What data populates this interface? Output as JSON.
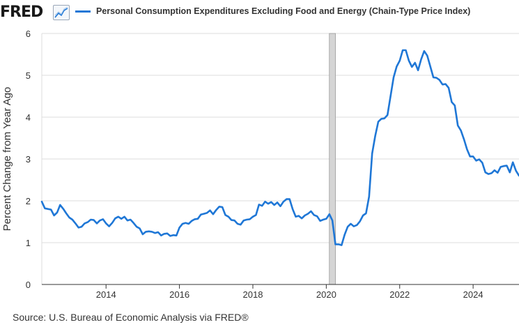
{
  "header": {
    "logo_text": "FRED",
    "logo_icon": "line-chart-icon",
    "legend_label": "Personal Consumption Expenditures Excluding Food and Energy (Chain-Type Price Index)",
    "series_color": "#1f77d6"
  },
  "source": "Source: U.S. Bureau of Economic Analysis via FRED®",
  "chart_data": {
    "type": "line",
    "title": "",
    "ylabel": "Percent Change from Year Ago",
    "xlabel": "",
    "xlim": [
      "2012-04-01",
      "2025-04-01"
    ],
    "ylim": [
      0,
      6
    ],
    "x_ticks": [
      "2014",
      "2016",
      "2018",
      "2020",
      "2022",
      "2024"
    ],
    "y_ticks": [
      "0",
      "1",
      "2",
      "3",
      "4",
      "5",
      "6"
    ],
    "grid": "horizontal",
    "recession": {
      "start": "2020-02-01",
      "end": "2020-04-01"
    },
    "series": [
      {
        "name": "Personal Consumption Expenditures Excluding Food and Energy (Chain-Type Price Index)",
        "x": [
          "2012-04",
          "2012-05",
          "2012-07",
          "2012-08",
          "2012-09",
          "2012-10",
          "2012-11",
          "2012-12",
          "2013-01",
          "2013-02",
          "2013-03",
          "2013-04",
          "2013-05",
          "2013-06",
          "2013-07",
          "2013-08",
          "2013-09",
          "2013-10",
          "2013-11",
          "2013-12",
          "2014-01",
          "2014-02",
          "2014-03",
          "2014-04",
          "2014-05",
          "2014-06",
          "2014-07",
          "2014-08",
          "2014-09",
          "2014-10",
          "2014-11",
          "2014-12",
          "2015-01",
          "2015-02",
          "2015-03",
          "2015-04",
          "2015-05",
          "2015-06",
          "2015-07",
          "2015-08",
          "2015-09",
          "2015-10",
          "2015-11",
          "2015-12",
          "2016-01",
          "2016-02",
          "2016-03",
          "2016-04",
          "2016-05",
          "2016-06",
          "2016-07",
          "2016-08",
          "2016-09",
          "2016-10",
          "2016-11",
          "2016-12",
          "2017-01",
          "2017-02",
          "2017-03",
          "2017-04",
          "2017-05",
          "2017-06",
          "2017-07",
          "2017-08",
          "2017-09",
          "2017-10",
          "2017-11",
          "2017-12",
          "2018-01",
          "2018-02",
          "2018-03",
          "2018-04",
          "2018-05",
          "2018-06",
          "2018-07",
          "2018-08",
          "2018-09",
          "2018-10",
          "2018-11",
          "2018-12",
          "2019-01",
          "2019-02",
          "2019-03",
          "2019-04",
          "2019-05",
          "2019-06",
          "2019-07",
          "2019-08",
          "2019-09",
          "2019-10",
          "2019-11",
          "2019-12",
          "2020-01",
          "2020-02",
          "2020-03",
          "2020-04",
          "2020-05",
          "2020-06",
          "2020-07",
          "2020-08",
          "2020-09",
          "2020-10",
          "2020-11",
          "2020-12",
          "2021-01",
          "2021-02",
          "2021-03",
          "2021-04",
          "2021-05",
          "2021-06",
          "2021-07",
          "2021-08",
          "2021-09",
          "2021-10",
          "2021-11",
          "2021-12",
          "2022-01",
          "2022-02",
          "2022-03",
          "2022-04",
          "2022-05",
          "2022-06",
          "2022-07",
          "2022-08",
          "2022-09",
          "2022-10",
          "2022-11",
          "2022-12",
          "2023-01",
          "2023-02",
          "2023-03",
          "2023-04",
          "2023-05",
          "2023-06",
          "2023-07",
          "2023-08",
          "2023-09",
          "2023-10",
          "2023-11",
          "2023-12",
          "2024-01",
          "2024-02",
          "2024-03",
          "2024-04",
          "2024-05",
          "2024-06",
          "2024-07",
          "2024-08",
          "2024-09",
          "2024-10",
          "2024-11",
          "2024-12",
          "2025-01",
          "2025-02",
          "2025-03",
          "2025-04"
        ],
        "y": [
          1.98,
          1.82,
          1.79,
          1.65,
          1.72,
          1.9,
          1.81,
          1.7,
          1.6,
          1.55,
          1.46,
          1.36,
          1.38,
          1.46,
          1.49,
          1.55,
          1.54,
          1.46,
          1.53,
          1.56,
          1.46,
          1.39,
          1.47,
          1.58,
          1.62,
          1.57,
          1.62,
          1.53,
          1.55,
          1.47,
          1.38,
          1.34,
          1.2,
          1.26,
          1.27,
          1.26,
          1.23,
          1.25,
          1.17,
          1.21,
          1.22,
          1.16,
          1.18,
          1.17,
          1.36,
          1.45,
          1.47,
          1.45,
          1.52,
          1.56,
          1.57,
          1.67,
          1.69,
          1.71,
          1.77,
          1.68,
          1.78,
          1.86,
          1.85,
          1.66,
          1.62,
          1.54,
          1.53,
          1.45,
          1.43,
          1.53,
          1.55,
          1.56,
          1.62,
          1.66,
          1.91,
          1.88,
          1.98,
          1.93,
          1.97,
          1.9,
          1.96,
          1.87,
          1.98,
          2.04,
          2.04,
          1.8,
          1.62,
          1.64,
          1.58,
          1.65,
          1.69,
          1.75,
          1.66,
          1.63,
          1.52,
          1.55,
          1.57,
          1.68,
          1.53,
          0.96,
          0.96,
          0.94,
          1.19,
          1.38,
          1.45,
          1.39,
          1.42,
          1.51,
          1.65,
          1.7,
          2.1,
          3.13,
          3.55,
          3.89,
          3.96,
          3.97,
          4.05,
          4.5,
          4.95,
          5.21,
          5.35,
          5.6,
          5.6,
          5.35,
          5.2,
          5.3,
          5.12,
          5.38,
          5.58,
          5.47,
          5.21,
          4.95,
          4.94,
          4.89,
          4.78,
          4.79,
          4.7,
          4.36,
          4.28,
          3.8,
          3.68,
          3.47,
          3.23,
          3.06,
          3.06,
          2.96,
          2.99,
          2.91,
          2.68,
          2.64,
          2.66,
          2.73,
          2.67,
          2.81,
          2.83,
          2.84,
          2.68,
          2.92,
          2.72,
          2.6
        ]
      }
    ]
  }
}
